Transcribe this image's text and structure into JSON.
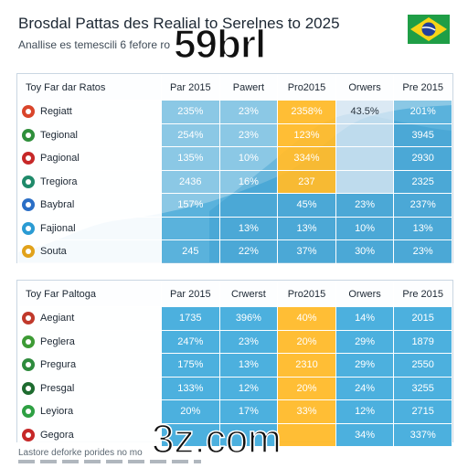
{
  "header": {
    "title": "Brosdal Pattas des Realial to Serelnes to 2025",
    "subtitle": "Anallise es temescili 6 fefore ro"
  },
  "watermarks": {
    "top": "59brl",
    "bottom": "3z.com"
  },
  "colors": {
    "cell_blue": "#3aa4d6",
    "highlight": "#ffba2a",
    "header_bg": "#ffffff",
    "area_fill": "#2a9bd3"
  },
  "chart_data": [
    {
      "type": "table",
      "title": "",
      "columns": [
        "Toy Far dar Ratos",
        "Par 2015",
        "Pawert",
        "Pro2015",
        "Orwers",
        "Pre 2015"
      ],
      "highlight_column": 3,
      "rows": [
        {
          "label": "Regiatt",
          "icon_color": "#d9452b",
          "values": [
            "235%",
            "23%",
            "2358%",
            "43.5%",
            "201%"
          ]
        },
        {
          "label": "Tegional",
          "icon_color": "#2f8f3b",
          "values": [
            "254%",
            "23%",
            "123%",
            "",
            "3945"
          ]
        },
        {
          "label": "Pagional",
          "icon_color": "#c62828",
          "values": [
            "135%",
            "10%",
            "334%",
            "",
            "2930"
          ]
        },
        {
          "label": "Tregiora",
          "icon_color": "#1f8a6a",
          "values": [
            "2436",
            "16%",
            "237",
            "",
            "2325"
          ]
        },
        {
          "label": "Baybral",
          "icon_color": "#2b6fc6",
          "values": [
            "157%",
            "",
            "45%",
            "23%",
            "237%"
          ]
        },
        {
          "label": "Fajional",
          "icon_color": "#2a9bd3",
          "values": [
            "",
            "13%",
            "13%",
            "10%",
            "13%"
          ]
        },
        {
          "label": "Souta",
          "icon_color": "#e1a21b",
          "values": [
            "245",
            "22%",
            "37%",
            "30%",
            "23%"
          ]
        }
      ]
    },
    {
      "type": "table",
      "title": "",
      "columns": [
        "Toy Far Paltoga",
        "Par 2015",
        "Crwerst",
        "Pro2015",
        "Orwers",
        "Pre 2015"
      ],
      "highlight_column": 3,
      "rows": [
        {
          "label": "Aegiant",
          "icon_color": "#c0392b",
          "values": [
            "1735",
            "396%",
            "40%",
            "14%",
            "2015"
          ]
        },
        {
          "label": "Peglera",
          "icon_color": "#3d9b35",
          "values": [
            "247%",
            "23%",
            "20%",
            "29%",
            "1879"
          ]
        },
        {
          "label": "Pregura",
          "icon_color": "#2e8b3d",
          "values": [
            "175%",
            "13%",
            "2310",
            "29%",
            "2550"
          ]
        },
        {
          "label": "Presgal",
          "icon_color": "#1d6b2f",
          "values": [
            "133%",
            "12%",
            "20%",
            "24%",
            "3255"
          ]
        },
        {
          "label": "Leyiora",
          "icon_color": "#2ea043",
          "values": [
            "20%",
            "17%",
            "33%",
            "12%",
            "2715"
          ]
        },
        {
          "label": "Gegora",
          "icon_color": "#c62828",
          "values": [
            "",
            "",
            "",
            "34%",
            "337%"
          ]
        }
      ]
    }
  ],
  "footnote": "Lastore deforke porides no mo"
}
